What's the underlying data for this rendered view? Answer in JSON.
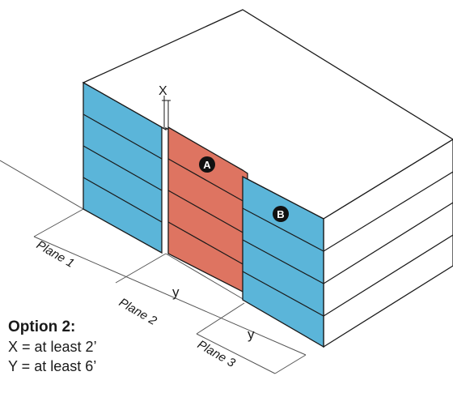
{
  "diagram": {
    "markers": [
      "A",
      "B"
    ],
    "dimensions": {
      "x_label": "X",
      "y_label_plane2": "y",
      "y_label_plane3": "y"
    },
    "planes": [
      "Plane 1",
      "Plane 2",
      "Plane 3"
    ],
    "colors": {
      "blue": "#5bb5d9",
      "orange": "#de7461",
      "stroke": "#1a1a1a",
      "marker_fill": "#111111"
    }
  },
  "caption": {
    "title": "Option 2:",
    "lines": [
      "X = at least 2’",
      "Y = at least 6’"
    ]
  }
}
